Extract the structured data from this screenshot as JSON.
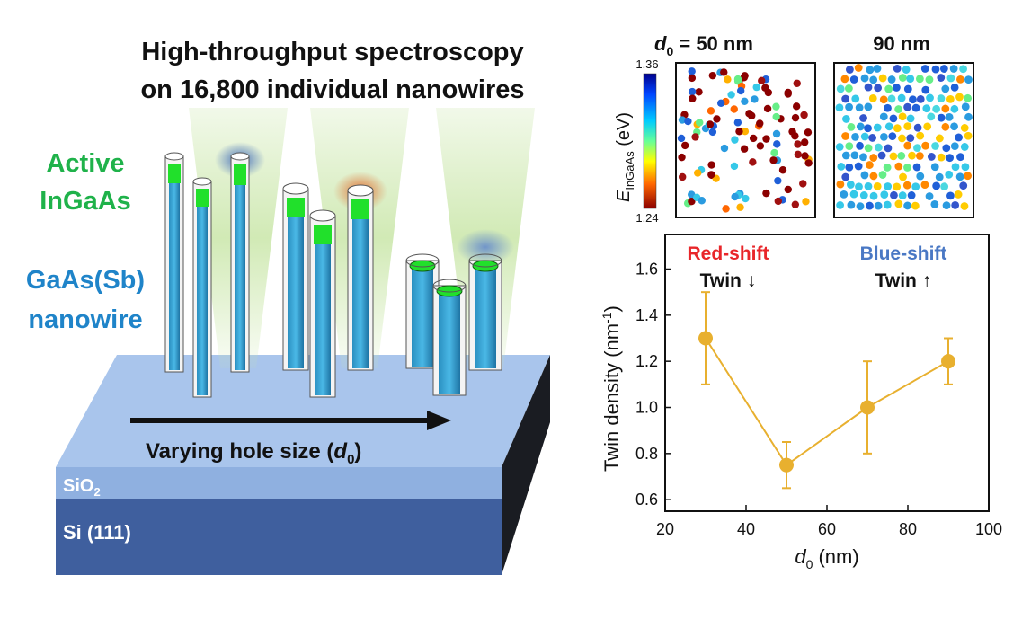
{
  "title": {
    "line1": "High-throughput spectroscopy",
    "line2": "on 16,800 individual nanowires"
  },
  "labels": {
    "active_line1": "Active",
    "active_line2": "InGaAs",
    "nanowire_line1": "GaAs(Sb)",
    "nanowire_line2": "nanowire",
    "arrow_text": "Varying hole size (",
    "arrow_var": "d",
    "arrow_sub": "0",
    "arrow_close": ")",
    "sio2": "SiO",
    "sio2_sub": "2",
    "si": "Si (111)"
  },
  "colors": {
    "green": "#1fb24a",
    "blue": "#1f84c9",
    "red_shift": "#e8262a",
    "blue_shift": "#4a78c4",
    "series": "#e8b02f"
  },
  "maps": {
    "left_title_var": "d",
    "left_title_sub": "0",
    "left_title_rest": " = 50 nm",
    "right_title": "90 nm",
    "colorbar_max": "1.36",
    "colorbar_min": "1.24",
    "colorbar_label": "E",
    "colorbar_label_sub": "InGaAs",
    "colorbar_label_unit": " (eV)"
  },
  "chart_data": {
    "type": "scatter",
    "title": "",
    "xlabel_var": "d",
    "xlabel_sub": "0",
    "xlabel_unit": " (nm)",
    "ylabel": "Twin density (nm",
    "ylabel_sup": "-1",
    "ylabel_close": ")",
    "x": [
      30,
      50,
      70,
      90
    ],
    "y": [
      1.3,
      0.75,
      1.0,
      1.2
    ],
    "err": [
      0.2,
      0.1,
      0.2,
      0.1
    ],
    "xlim": [
      20,
      100
    ],
    "ylim": [
      0.55,
      1.75
    ],
    "xticks": [
      20,
      40,
      60,
      80,
      100
    ],
    "yticks": [
      0.6,
      0.8,
      1.0,
      1.2,
      1.4,
      1.6
    ],
    "ytick_labels": [
      "0.6",
      "0.8",
      "1.0",
      "1.2",
      "1.4",
      "1.6"
    ],
    "annotations": {
      "red_shift": "Red-shift",
      "red_twin": "Twin",
      "red_arrow": "↓",
      "blue_shift": "Blue-shift",
      "blue_twin": "Twin",
      "blue_arrow": "↑"
    }
  }
}
